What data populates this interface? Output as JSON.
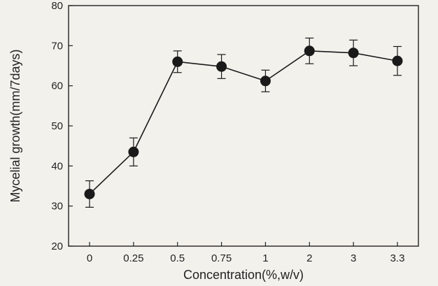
{
  "chart_data": {
    "type": "line",
    "title": "",
    "xlabel": "Concentration(%,w/v)",
    "ylabel": "Mycelial growth(mm/7days)",
    "categories": [
      "0",
      "0.25",
      "0.5",
      "0.75",
      "1",
      "2",
      "3",
      "3.3"
    ],
    "series": [
      {
        "values": [
          33.0,
          43.5,
          66.0,
          64.8,
          61.2,
          68.7,
          68.2,
          66.2
        ],
        "error": [
          3.3,
          3.5,
          2.7,
          3.0,
          2.7,
          3.2,
          3.2,
          3.6
        ]
      }
    ],
    "ylim": [
      20,
      80
    ],
    "yticks": [
      20,
      30,
      40,
      50,
      60,
      70,
      80
    ],
    "grid": false,
    "legend": "none",
    "colors": {
      "line": "#1a1a1a",
      "marker": "#1a1a1a",
      "axis": "#222222",
      "background": "#f3f1ec"
    }
  }
}
